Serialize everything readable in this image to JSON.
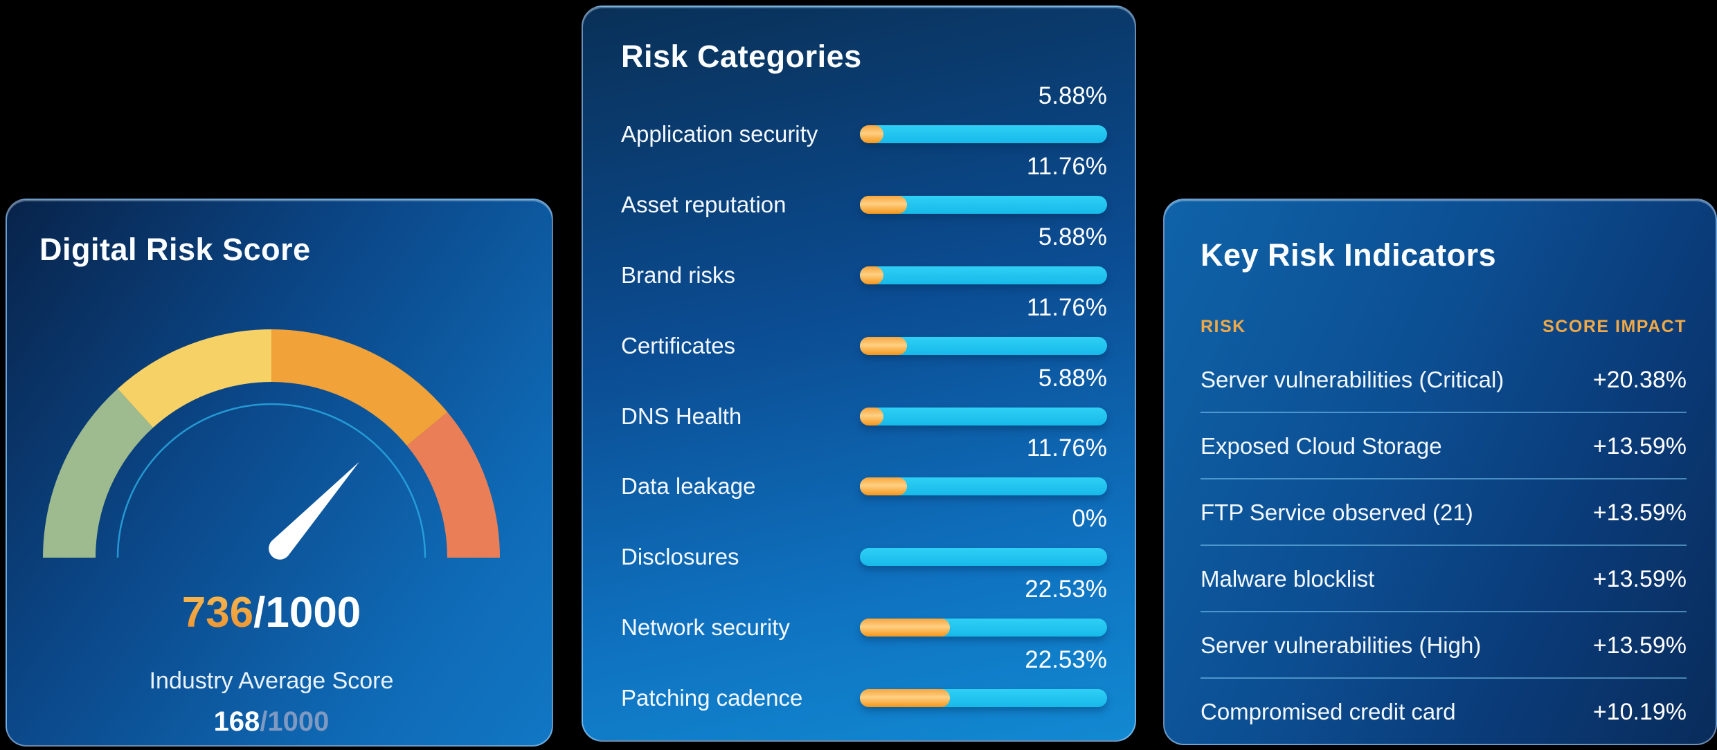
{
  "page": {
    "background": "#000000"
  },
  "gauge_card": {
    "title": "Digital Risk Score",
    "score": 736,
    "max": 1000,
    "score_display": "736",
    "score_suffix": "/1000",
    "industry_label": "Industry Average Score",
    "industry_score": 168,
    "industry_score_display": "168",
    "industry_score_suffix": "/1000",
    "accent_orange": "#f5a432",
    "needle_color": "#ffffff",
    "inner_arc_color": "#2aa7e0",
    "segments": [
      {
        "name": "low",
        "color": "#9dbb8e",
        "from": 0,
        "to": 0.265
      },
      {
        "name": "medium",
        "color": "#f6d165",
        "from": 0.265,
        "to": 0.5
      },
      {
        "name": "high",
        "color": "#f1a238",
        "from": 0.5,
        "to": 0.78
      },
      {
        "name": "critical",
        "color": "#ea7f57",
        "from": 0.78,
        "to": 1
      }
    ]
  },
  "risk_categories": {
    "title": "Risk Categories",
    "track_color": "#1cc3ee",
    "fill_color": "#f6a128",
    "rows": [
      {
        "label": "Application security",
        "value": 5.88,
        "display": "5.88%"
      },
      {
        "label": "Asset reputation",
        "value": 11.76,
        "display": "11.76%"
      },
      {
        "label": "Brand risks",
        "value": 5.88,
        "display": "5.88%"
      },
      {
        "label": "Certificates",
        "value": 11.76,
        "display": "11.76%"
      },
      {
        "label": "DNS Health",
        "value": 5.88,
        "display": "5.88%"
      },
      {
        "label": "Data leakage",
        "value": 11.76,
        "display": "11.76%"
      },
      {
        "label": "Disclosures",
        "value": 0,
        "display": "0%"
      },
      {
        "label": "Network security",
        "value": 22.53,
        "display": "22.53%"
      },
      {
        "label": "Patching cadence",
        "value": 22.53,
        "display": "22.53%"
      }
    ]
  },
  "key_risk_indicators": {
    "title": "Key Risk Indicators",
    "header_color": "#f0a946",
    "columns": {
      "risk": "RISK",
      "impact": "SCORE IMPACT"
    },
    "rows": [
      {
        "label": "Server vulnerabilities (Critical)",
        "impact": "+20.38%"
      },
      {
        "label": "Exposed Cloud Storage",
        "impact": "+13.59%"
      },
      {
        "label": "FTP Service observed (21)",
        "impact": "+13.59%"
      },
      {
        "label": "Malware blocklist",
        "impact": "+13.59%"
      },
      {
        "label": "Server vulnerabilities (High)",
        "impact": "+13.59%"
      },
      {
        "label": "Compromised credit card",
        "impact": "+10.19%"
      }
    ]
  },
  "chart_data": [
    {
      "type": "gauge",
      "title": "Digital Risk Score",
      "value": 736,
      "max": 1000,
      "industry_average": 168,
      "segment_stops": [
        0,
        0.265,
        0.5,
        0.78,
        1
      ],
      "segment_colors": [
        "#9dbb8e",
        "#f6d165",
        "#f1a238",
        "#ea7f57"
      ],
      "needle_color": "#ffffff"
    },
    {
      "type": "bar",
      "orientation": "horizontal",
      "title": "Risk Categories",
      "categories": [
        "Application security",
        "Asset reputation",
        "Brand risks",
        "Certificates",
        "DNS Health",
        "Data leakage",
        "Disclosures",
        "Network security",
        "Patching cadence"
      ],
      "values": [
        5.88,
        11.76,
        5.88,
        11.76,
        5.88,
        11.76,
        0,
        22.53,
        22.53
      ],
      "unit": "%",
      "xlabel": "",
      "ylabel": "",
      "bar_color": "#f6a128",
      "track_color": "#1cc3ee",
      "grid": false,
      "legend": "none"
    },
    {
      "type": "table",
      "title": "Key Risk Indicators",
      "columns": [
        "RISK",
        "SCORE IMPACT"
      ],
      "rows": [
        [
          "Server vulnerabilities (Critical)",
          "+20.38%"
        ],
        [
          "Exposed Cloud Storage",
          "+13.59%"
        ],
        [
          "FTP Service observed (21)",
          "+13.59%"
        ],
        [
          "Malware blocklist",
          "+13.59%"
        ],
        [
          "Server vulnerabilities (High)",
          "+13.59%"
        ],
        [
          "Compromised credit card",
          "+10.19%"
        ]
      ]
    }
  ]
}
